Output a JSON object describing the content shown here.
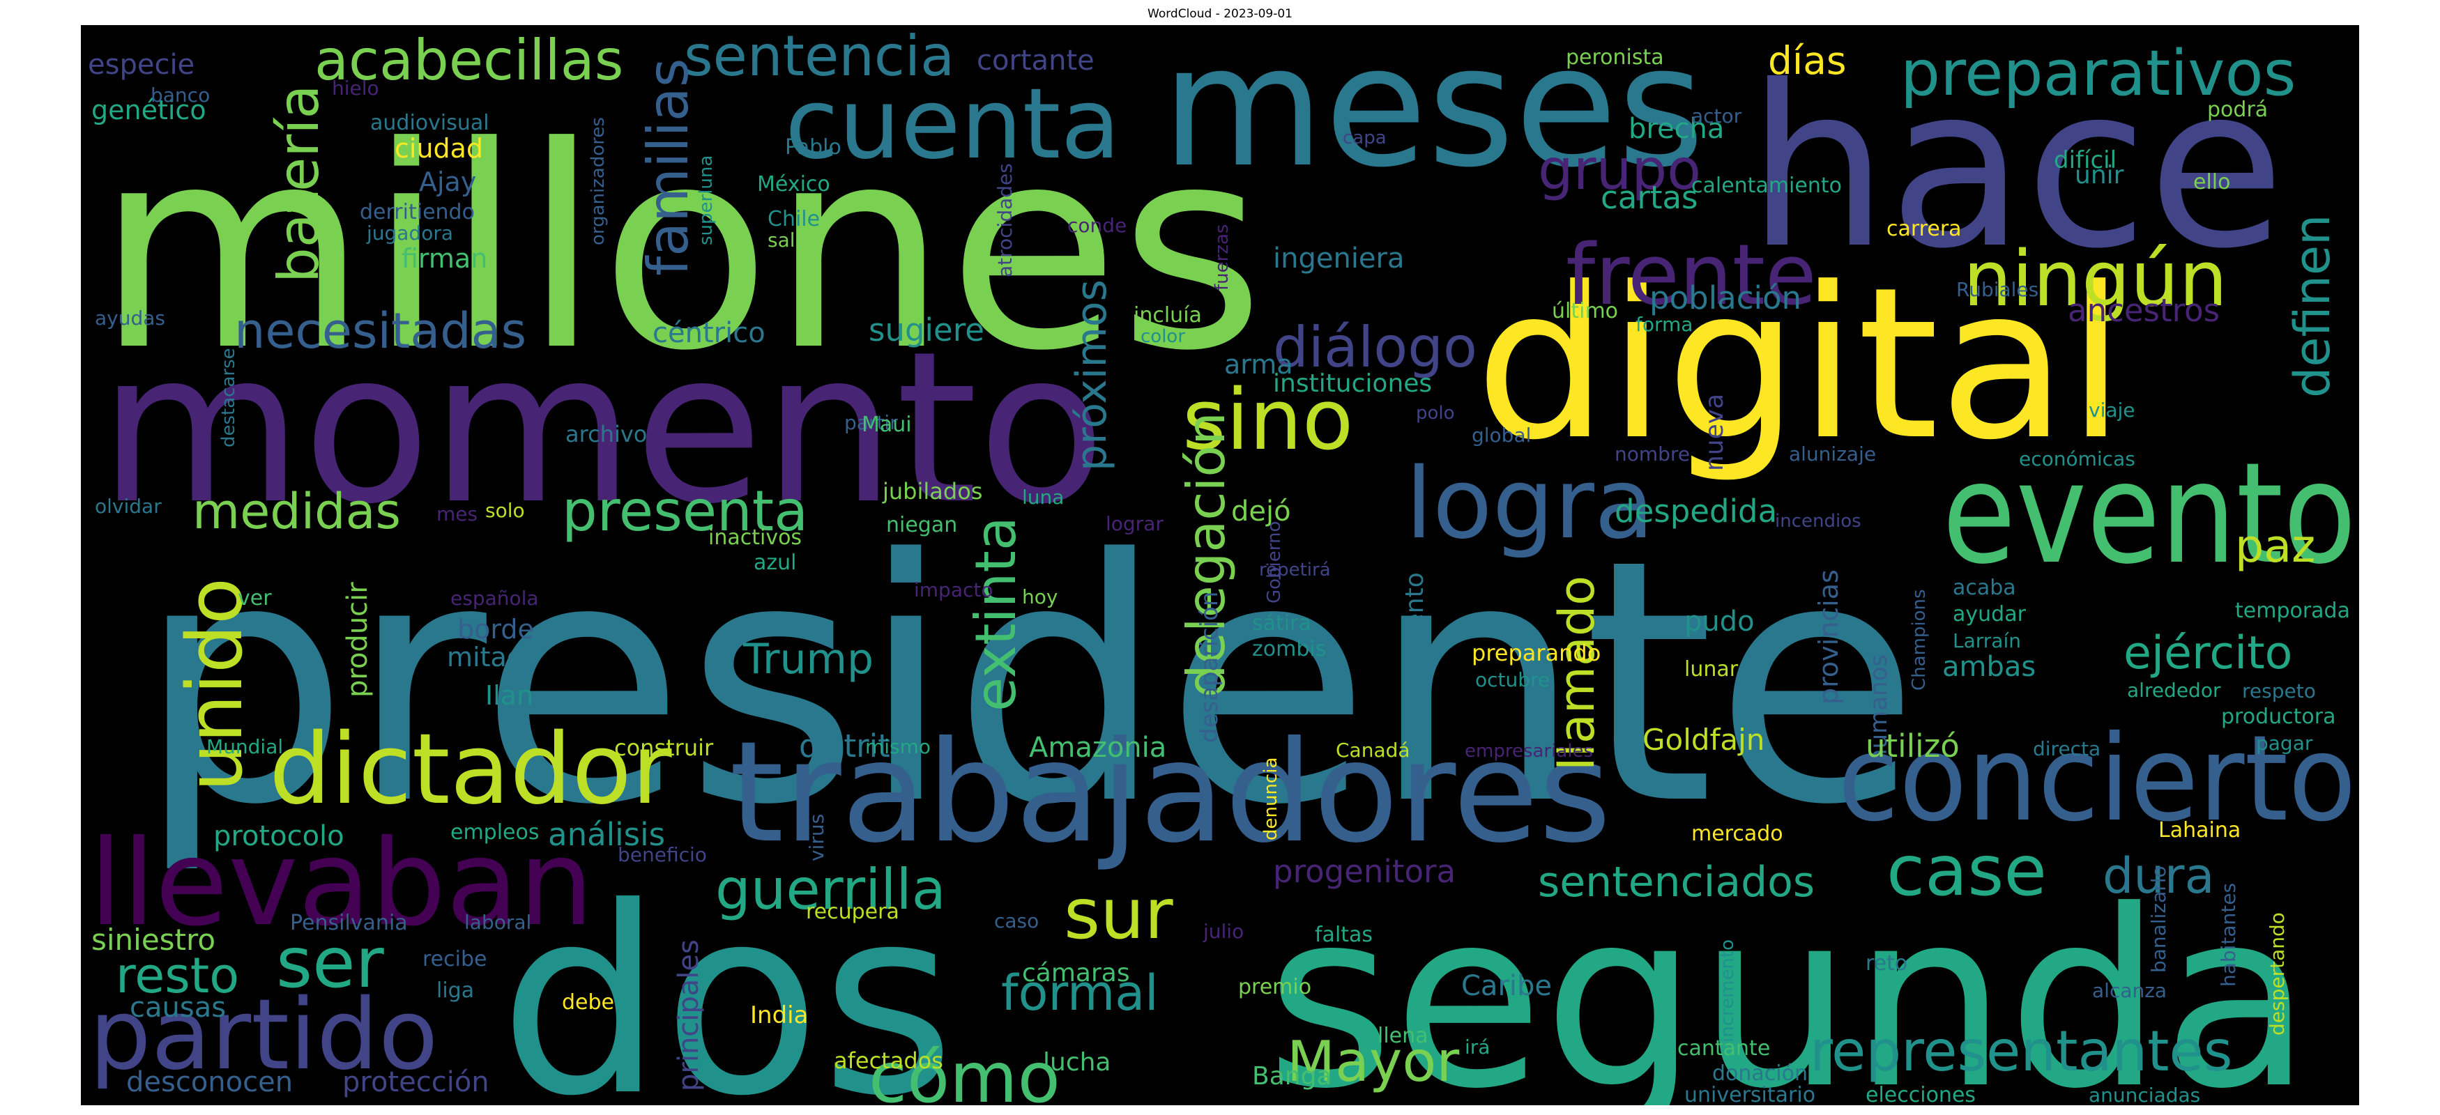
{
  "title": "WordCloud - 2023-09-01",
  "palette": {
    "v0": "#440154",
    "v1": "#482475",
    "v2": "#414487",
    "v3": "#355f8d",
    "v4": "#2a788e",
    "v5": "#21918c",
    "v6": "#22a884",
    "v7": "#44bf70",
    "v8": "#7ad151",
    "v9": "#bddf26",
    "v10": "#fde725"
  },
  "words": [
    {
      "text": "millones",
      "color": "v8"
    },
    {
      "text": "hace",
      "color": "v2"
    },
    {
      "text": "meses",
      "color": "v4"
    },
    {
      "text": "presidente",
      "color": "v4"
    },
    {
      "text": "momento",
      "color": "v1"
    },
    {
      "text": "digital",
      "color": "v10"
    },
    {
      "text": "dos",
      "color": "v5"
    },
    {
      "text": "segunda",
      "color": "v6"
    },
    {
      "text": "trabajadores",
      "color": "v3"
    },
    {
      "text": "concierto",
      "color": "v3"
    },
    {
      "text": "evento",
      "color": "v7"
    },
    {
      "text": "llevaban",
      "color": "v0"
    },
    {
      "text": "dictador",
      "color": "v9"
    },
    {
      "text": "cuenta",
      "color": "v4"
    },
    {
      "text": "frente",
      "color": "v1"
    },
    {
      "text": "logra",
      "color": "v3"
    },
    {
      "text": "partido",
      "color": "v2"
    },
    {
      "text": "ningún",
      "color": "v9"
    },
    {
      "text": "sino",
      "color": "v9"
    },
    {
      "text": "unido",
      "color": "v9"
    },
    {
      "text": "acabecillas",
      "color": "v8"
    },
    {
      "text": "preparativos",
      "color": "v5"
    },
    {
      "text": "sentencia",
      "color": "v4"
    },
    {
      "text": "grupo",
      "color": "v1"
    },
    {
      "text": "batería",
      "color": "v8"
    },
    {
      "text": "familias",
      "color": "v3"
    },
    {
      "text": "necesitadas",
      "color": "v3"
    },
    {
      "text": "diálogo",
      "color": "v2"
    },
    {
      "text": "definen",
      "color": "v5"
    },
    {
      "text": "presenta",
      "color": "v7"
    },
    {
      "text": "medidas",
      "color": "v8"
    },
    {
      "text": "delegación",
      "color": "v8"
    },
    {
      "text": "extinta",
      "color": "v7"
    },
    {
      "text": "próximos",
      "color": "v4"
    },
    {
      "text": "paz",
      "color": "v9"
    },
    {
      "text": "ejército",
      "color": "v6"
    },
    {
      "text": "case",
      "color": "v6"
    },
    {
      "text": "dura",
      "color": "v4"
    },
    {
      "text": "sur",
      "color": "v9"
    },
    {
      "text": "guerrilla",
      "color": "v6"
    },
    {
      "text": "ser",
      "color": "v6"
    },
    {
      "text": "resto",
      "color": "v6"
    },
    {
      "text": "cómo",
      "color": "v7"
    },
    {
      "text": "Mayor",
      "color": "v8"
    },
    {
      "text": "formal",
      "color": "v5"
    },
    {
      "text": "representantes",
      "color": "v5"
    },
    {
      "text": "sentenciados",
      "color": "v6"
    },
    {
      "text": "progenitora",
      "color": "v1"
    },
    {
      "text": "llamado",
      "color": "v9"
    },
    {
      "text": "Trump",
      "color": "v5"
    },
    {
      "text": "despedida",
      "color": "v6"
    },
    {
      "text": "días",
      "color": "v10"
    },
    {
      "text": "brecha",
      "color": "v6"
    },
    {
      "text": "cartas",
      "color": "v6"
    },
    {
      "text": "ingeniera",
      "color": "v4"
    },
    {
      "text": "población",
      "color": "v4"
    },
    {
      "text": "ancestros",
      "color": "v1"
    },
    {
      "text": "instituciones",
      "color": "v6"
    },
    {
      "text": "sugiere",
      "color": "v5"
    },
    {
      "text": "céntrico",
      "color": "v4"
    },
    {
      "text": "arma",
      "color": "v4"
    },
    {
      "text": "nueva",
      "color": "v2"
    },
    {
      "text": "dejó",
      "color": "v8"
    },
    {
      "text": "surgimiento",
      "color": "v4"
    },
    {
      "text": "desaparición",
      "color": "v3"
    },
    {
      "text": "provincias",
      "color": "v3"
    },
    {
      "text": "humanos",
      "color": "v3"
    },
    {
      "text": "utilizó",
      "color": "v8"
    },
    {
      "text": "ambas",
      "color": "v5"
    },
    {
      "text": "pudo",
      "color": "v5"
    },
    {
      "text": "Goldfajn",
      "color": "v9"
    },
    {
      "text": "Amazonia",
      "color": "v7"
    },
    {
      "text": "distrito",
      "color": "v4"
    },
    {
      "text": "análisis",
      "color": "v5"
    },
    {
      "text": "protocolo",
      "color": "v6"
    },
    {
      "text": "borde",
      "color": "v3"
    },
    {
      "text": "mitad",
      "color": "v4"
    },
    {
      "text": "Ilan",
      "color": "v5"
    },
    {
      "text": "producir",
      "color": "v8"
    },
    {
      "text": "genético",
      "color": "v6"
    },
    {
      "text": "ciudad",
      "color": "v10"
    },
    {
      "text": "Ajay",
      "color": "v3"
    },
    {
      "text": "firman",
      "color": "v7"
    },
    {
      "text": "especie",
      "color": "v2"
    },
    {
      "text": "cortante",
      "color": "v2"
    },
    {
      "text": "peronista",
      "color": "v8"
    },
    {
      "text": "siniestro",
      "color": "v8"
    },
    {
      "text": "causas",
      "color": "v4"
    },
    {
      "text": "desconocen",
      "color": "v3"
    },
    {
      "text": "protección",
      "color": "v2"
    },
    {
      "text": "principales",
      "color": "v2"
    },
    {
      "text": "cámaras",
      "color": "v7"
    },
    {
      "text": "lucha",
      "color": "v7"
    },
    {
      "text": "Banga",
      "color": "v7"
    },
    {
      "text": "Caribe",
      "color": "v4"
    },
    {
      "text": "India",
      "color": "v10"
    },
    {
      "text": "afectados",
      "color": "v9"
    },
    {
      "text": "debe",
      "color": "v10"
    },
    {
      "text": "unir",
      "color": "v5"
    },
    {
      "text": "difícil",
      "color": "v6"
    },
    {
      "text": "podrá",
      "color": "v8"
    },
    {
      "text": "ello",
      "color": "v8"
    },
    {
      "text": "actor",
      "color": "v3"
    },
    {
      "text": "carrera",
      "color": "v10"
    },
    {
      "text": "calentamiento",
      "color": "v6"
    },
    {
      "text": "Rubiales",
      "color": "v3"
    },
    {
      "text": "último",
      "color": "v8"
    },
    {
      "text": "forma",
      "color": "v6"
    },
    {
      "text": "viaje",
      "color": "v5"
    },
    {
      "text": "económicas",
      "color": "v5"
    },
    {
      "text": "alunizaje",
      "color": "v3"
    },
    {
      "text": "incendios",
      "color": "v2"
    },
    {
      "text": "nombre",
      "color": "v2"
    },
    {
      "text": "global",
      "color": "v3"
    },
    {
      "text": "polo",
      "color": "v2"
    },
    {
      "text": "Gobierno",
      "color": "v2"
    },
    {
      "text": "repetirá",
      "color": "v2"
    },
    {
      "text": "lograr",
      "color": "v1"
    },
    {
      "text": "luna",
      "color": "v6"
    },
    {
      "text": "jubilados",
      "color": "v8"
    },
    {
      "text": "niegan",
      "color": "v7"
    },
    {
      "text": "inactivos",
      "color": "v8"
    },
    {
      "text": "azul",
      "color": "v6"
    },
    {
      "text": "impacto",
      "color": "v1"
    },
    {
      "text": "hoy",
      "color": "v8"
    },
    {
      "text": "sátira",
      "color": "v5"
    },
    {
      "text": "zombis",
      "color": "v5"
    },
    {
      "text": "preparando",
      "color": "v10"
    },
    {
      "text": "octubre",
      "color": "v5"
    },
    {
      "text": "lunar",
      "color": "v9"
    },
    {
      "text": "acaba",
      "color": "v4"
    },
    {
      "text": "ayudar",
      "color": "v6"
    },
    {
      "text": "Larraín",
      "color": "v5"
    },
    {
      "text": "Champions",
      "color": "v3"
    },
    {
      "text": "temporada",
      "color": "v6"
    },
    {
      "text": "respeto",
      "color": "v4"
    },
    {
      "text": "alrededor",
      "color": "v6"
    },
    {
      "text": "productora",
      "color": "v6"
    },
    {
      "text": "pagar",
      "color": "v5"
    },
    {
      "text": "directa",
      "color": "v4"
    },
    {
      "text": "empresariales",
      "color": "v1"
    },
    {
      "text": "Canadá",
      "color": "v9"
    },
    {
      "text": "denuncia",
      "color": "v10"
    },
    {
      "text": "construir",
      "color": "v9"
    },
    {
      "text": "mismo",
      "color": "v6"
    },
    {
      "text": "Mundial",
      "color": "v6"
    },
    {
      "text": "empleos",
      "color": "v6"
    },
    {
      "text": "beneficio",
      "color": "v2"
    },
    {
      "text": "virus",
      "color": "v3"
    },
    {
      "text": "mercado",
      "color": "v10"
    },
    {
      "text": "Lahaina",
      "color": "v10"
    },
    {
      "text": "banalizarlo",
      "color": "v3"
    },
    {
      "text": "habitantes",
      "color": "v3"
    },
    {
      "text": "despertando",
      "color": "v9"
    },
    {
      "text": "caso",
      "color": "v3"
    },
    {
      "text": "recupera",
      "color": "v9"
    },
    {
      "text": "julio",
      "color": "v1"
    },
    {
      "text": "faltas",
      "color": "v6"
    },
    {
      "text": "premio",
      "color": "v8"
    },
    {
      "text": "llena",
      "color": "v7"
    },
    {
      "text": "irá",
      "color": "v6"
    },
    {
      "text": "cantante",
      "color": "v7"
    },
    {
      "text": "donación",
      "color": "v4"
    },
    {
      "text": "universitario",
      "color": "v4"
    },
    {
      "text": "elecciones",
      "color": "v6"
    },
    {
      "text": "anunciadas",
      "color": "v5"
    },
    {
      "text": "incremento",
      "color": "v5"
    },
    {
      "text": "reto",
      "color": "v4"
    },
    {
      "text": "alcanza",
      "color": "v3"
    },
    {
      "text": "Pensilvania",
      "color": "v3"
    },
    {
      "text": "laboral",
      "color": "v3"
    },
    {
      "text": "recibe",
      "color": "v3"
    },
    {
      "text": "liga",
      "color": "v4"
    },
    {
      "text": "banco",
      "color": "v3"
    },
    {
      "text": "hielo",
      "color": "v1"
    },
    {
      "text": "audiovisual",
      "color": "v4"
    },
    {
      "text": "derritiendo",
      "color": "v3"
    },
    {
      "text": "jugadora",
      "color": "v4"
    },
    {
      "text": "organizadores",
      "color": "v3"
    },
    {
      "text": "superluna",
      "color": "v5"
    },
    {
      "text": "Pablo",
      "color": "v4"
    },
    {
      "text": "México",
      "color": "v6"
    },
    {
      "text": "Chile",
      "color": "v5"
    },
    {
      "text": "salas",
      "color": "v8"
    },
    {
      "text": "atrocidades",
      "color": "v2"
    },
    {
      "text": "conde",
      "color": "v1"
    },
    {
      "text": "fuerzas",
      "color": "v1"
    },
    {
      "text": "capa",
      "color": "v2"
    },
    {
      "text": "incluía",
      "color": "v8"
    },
    {
      "text": "color",
      "color": "v5"
    },
    {
      "text": "ayudas",
      "color": "v3"
    },
    {
      "text": "destacarse",
      "color": "v4"
    },
    {
      "text": "partir",
      "color": "v3"
    },
    {
      "text": "archivo",
      "color": "v4"
    },
    {
      "text": "Maui",
      "color": "v7"
    },
    {
      "text": "olvidar",
      "color": "v4"
    },
    {
      "text": "mes",
      "color": "v1"
    },
    {
      "text": "solo",
      "color": "v9"
    },
    {
      "text": "española",
      "color": "v1"
    },
    {
      "text": "ver",
      "color": "v7"
    }
  ]
}
